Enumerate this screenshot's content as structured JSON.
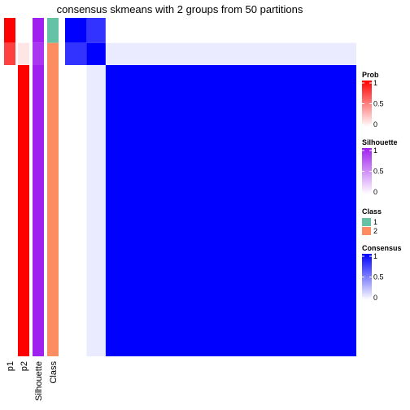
{
  "chart_data": {
    "type": "heatmap",
    "title": "consensus skmeans with 2 groups from 50 partitions",
    "colors": {
      "prob": [
        "#ffffff",
        "#ff0000"
      ],
      "silhouette": [
        "#ffffff",
        "#a020f0"
      ],
      "class": {
        "1": "#66c2a5",
        "2": "#fc8d62"
      },
      "consensus": [
        "#ffffff",
        "#0000ff"
      ]
    },
    "annotation_columns": [
      "p1",
      "p2",
      "Silhouette",
      "Class"
    ],
    "row_groups": [
      {
        "fraction": 0.0738,
        "p1": 1.0,
        "p2": 0.0,
        "silhouette": 1.0,
        "class": "1"
      },
      {
        "fraction": 0.0656,
        "p1": 0.75,
        "p2": 0.1,
        "silhouette": 0.9,
        "class": "2"
      },
      {
        "fraction": 0.8606,
        "p1": 0.0,
        "p2": 1.0,
        "silhouette": 1.0,
        "class": "2"
      }
    ],
    "consensus_matrix": [
      [
        1.0,
        0.8,
        0.0
      ],
      [
        0.8,
        1.0,
        0.08
      ],
      [
        0.0,
        0.08,
        1.0
      ]
    ],
    "legends": [
      {
        "key": "prob",
        "title": "Prob",
        "type": "continuous",
        "ticks": [
          "1",
          "0.5",
          "0"
        ]
      },
      {
        "key": "silhouette",
        "title": "Silhouette",
        "type": "continuous",
        "ticks": [
          "1",
          "0.5",
          "0"
        ]
      },
      {
        "key": "class",
        "title": "Class",
        "type": "discrete",
        "items": [
          "1",
          "2"
        ]
      },
      {
        "key": "consensus",
        "title": "Consensus",
        "type": "continuous",
        "ticks": [
          "1",
          "0.5",
          "0"
        ]
      }
    ]
  }
}
